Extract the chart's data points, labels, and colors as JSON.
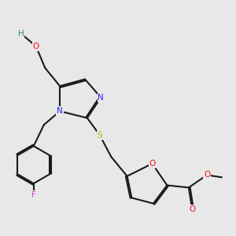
{
  "bg_color": "#e8e8e8",
  "bond_color": "#1a1a1a",
  "atom_colors": {
    "H": "#2e8b8b",
    "O": "#ee1111",
    "N": "#2222ee",
    "S": "#b8b800",
    "F": "#cc44cc",
    "C": "#1a1a1a"
  },
  "lw": 1.5,
  "dbl_off": 0.06,
  "fs": 7.5
}
